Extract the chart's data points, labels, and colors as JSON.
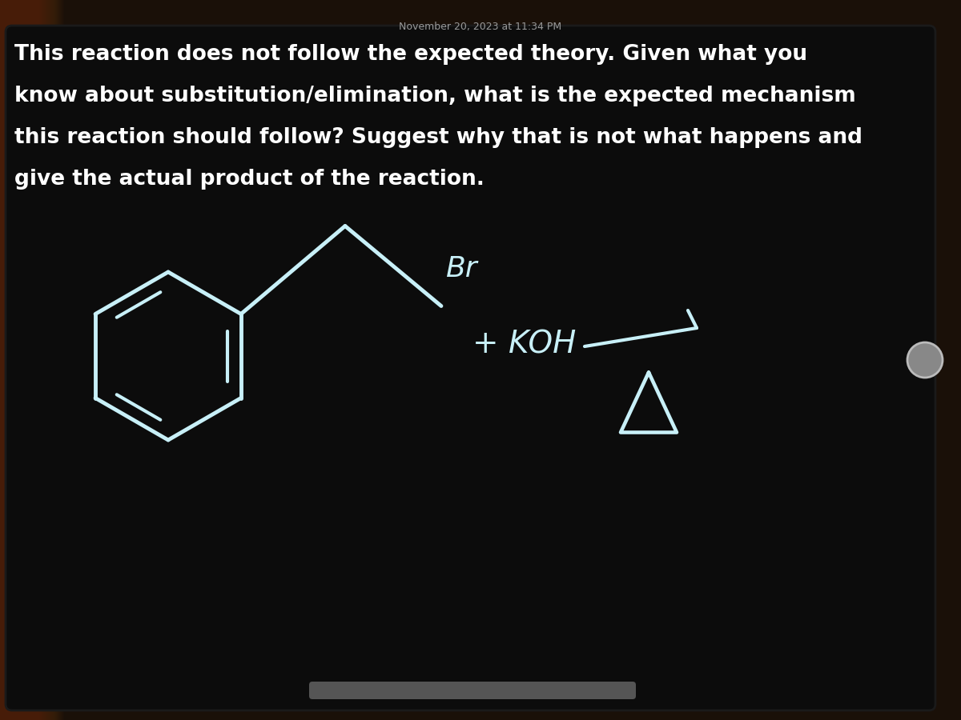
{
  "bg_outer": "#1a1008",
  "bg_screen": "#0d0d0d",
  "text_color": "#ffffff",
  "draw_color": "#c8f0f8",
  "koh_color": "#c8f0f8",
  "timestamp": "November 20, 2023 at 11:34 PM",
  "question_line1": "This reaction does not follow the expected theory. Given what you",
  "question_line2": "know about substitution/elimination, what is the expected mechanism",
  "question_line3": "this reaction should follow? Suggest why that is not what happens and",
  "question_line4": "give the actual product of the reaction.",
  "lw_mol": 3.5,
  "lw_arrow": 3.0
}
